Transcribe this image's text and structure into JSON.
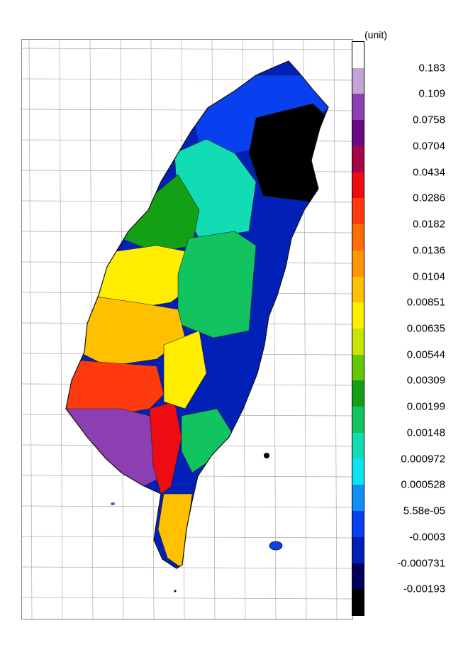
{
  "legend": {
    "unit": "(unit)",
    "labels": [
      "0.183",
      "0.109",
      "0.0758",
      "0.0704",
      "0.0434",
      "0.0286",
      "0.0182",
      "0.0136",
      "0.0104",
      "0.00851",
      "0.00635",
      "0.00544",
      "0.00309",
      "0.00199",
      "0.00148",
      "0.000972",
      "0.000528",
      "5.58e-05",
      "-0.0003",
      "-0.000731",
      "-0.00193"
    ],
    "colors": [
      "#ffffff",
      "#c3a6d6",
      "#8b3fb0",
      "#6a0a84",
      "#a8044a",
      "#ee0c12",
      "#ff3a0d",
      "#ff6e06",
      "#ff9500",
      "#ffc000",
      "#ffee00",
      "#c8e400",
      "#64c800",
      "#14a014",
      "#11c460",
      "#12dcb4",
      "#0ee4f0",
      "#1090f0",
      "#0840f0",
      "#0020b8",
      "#00005c",
      "#000000"
    ]
  },
  "map": {
    "region_colors": {
      "north_tip": "#0840f0",
      "northeast": "#000000",
      "northwest": "#12dcb4",
      "taoyuan": "#14a014",
      "central_west": "#ffee00",
      "chiayi": "#ffc000",
      "tainan": "#ff3a0d",
      "kaohsiung": "#8b3fb0",
      "pingtung": "#ee0c12",
      "east_coast": "#0020b8",
      "central_mountain": "#11c460",
      "south_tip": "#ffc000"
    }
  }
}
